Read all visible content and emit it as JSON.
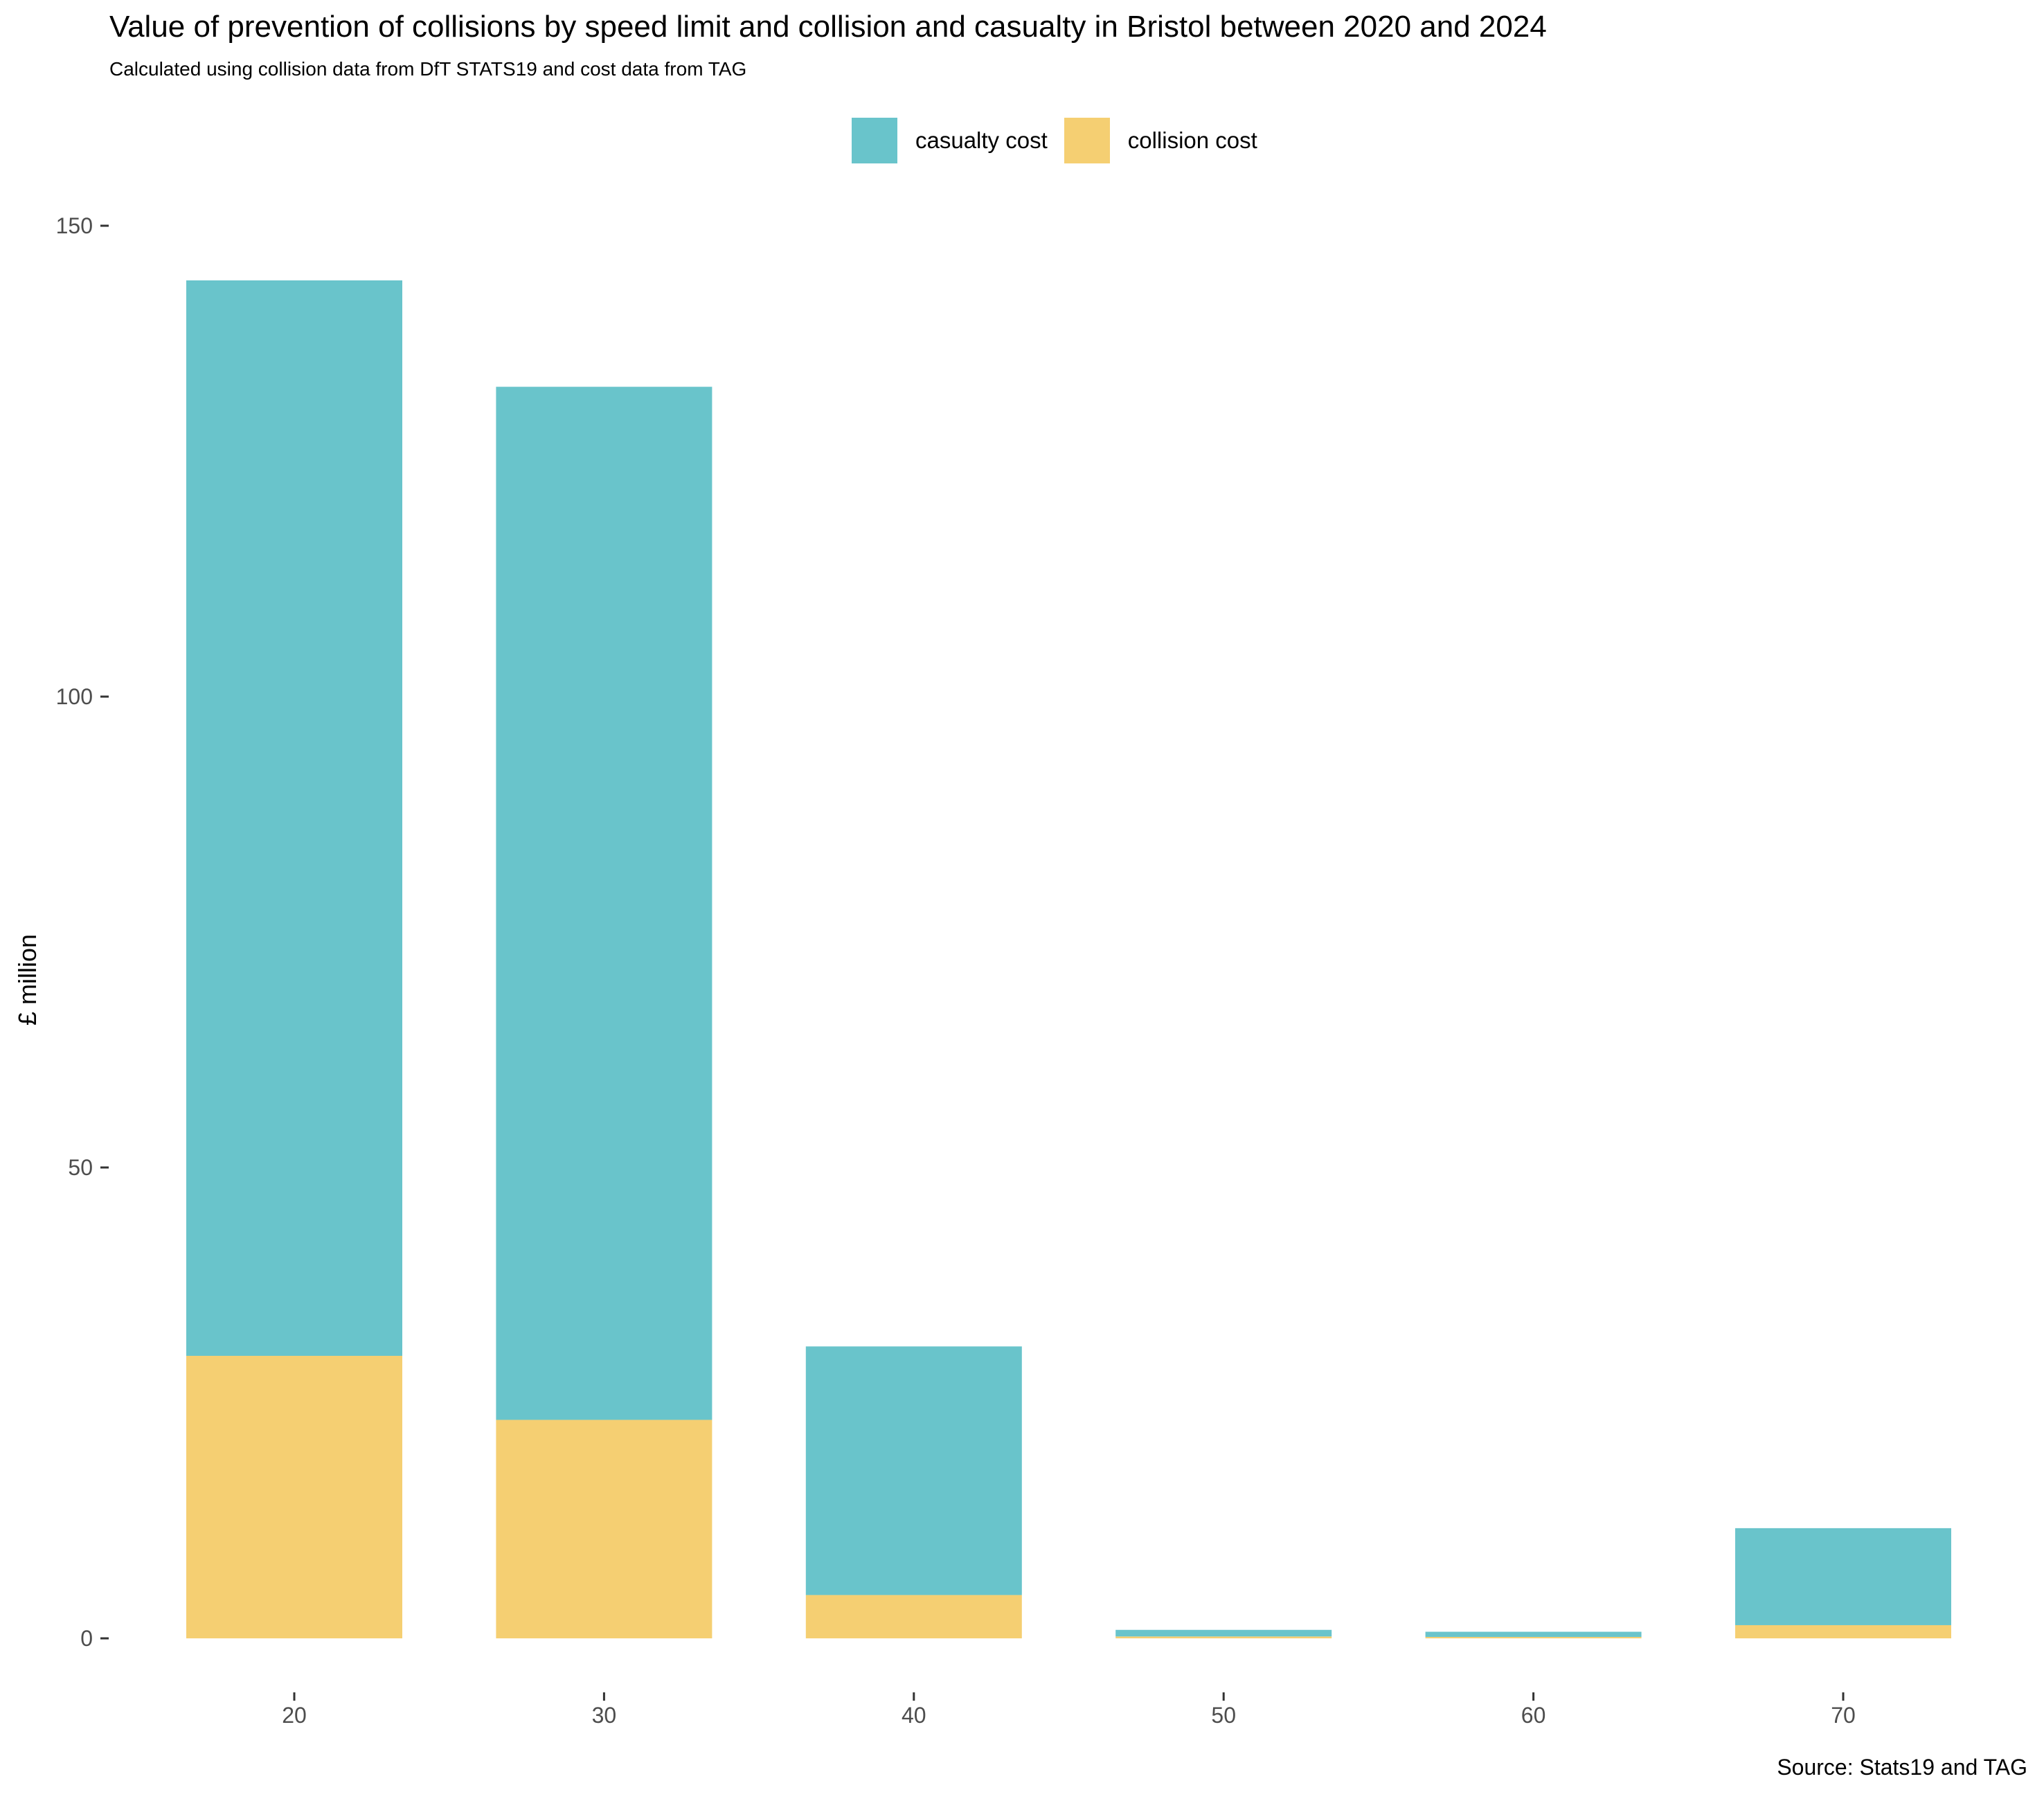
{
  "colors": {
    "casualty": "#69c4cb",
    "collision": "#f5cf72"
  },
  "legend": {
    "casualty_label": "casualty cost",
    "collision_label": "collision cost"
  },
  "caption": "Source: Stats19 and TAG",
  "chart_data": {
    "type": "bar",
    "stacked": true,
    "title": "Value of prevention of collisions by speed limit and collision and casualty in Bristol between 2020 and 2024",
    "subtitle": "Calculated using collision data from DfT STATS19 and cost data from TAG",
    "xlabel": "",
    "ylabel": "£ million",
    "ylim": [
      0,
      150
    ],
    "yticks": [
      0,
      50,
      100,
      150
    ],
    "categories": [
      "20",
      "30",
      "40",
      "50",
      "60",
      "70"
    ],
    "series": [
      {
        "name": "collision cost",
        "values": [
          30.0,
          23.2,
          4.6,
          0.2,
          0.15,
          1.4
        ]
      },
      {
        "name": "casualty cost",
        "values": [
          114.2,
          109.7,
          26.4,
          0.7,
          0.55,
          10.3
        ]
      }
    ],
    "legend_position": "top"
  }
}
